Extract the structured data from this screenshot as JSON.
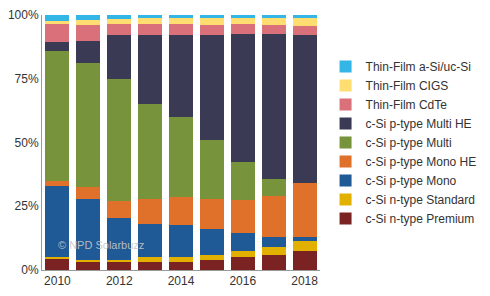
{
  "chart_data": {
    "type": "bar",
    "stacked": true,
    "grid": false,
    "legend": "right",
    "x": [
      2010,
      2011,
      2012,
      2013,
      2014,
      2015,
      2016,
      2017,
      2018
    ],
    "xlim": [
      2009.5,
      2018.5
    ],
    "xticks": [
      2010,
      2012,
      2014,
      2016,
      2018
    ],
    "ylim": [
      0,
      100
    ],
    "yticks": [
      {
        "value": 0,
        "label": "0%"
      },
      {
        "value": 25,
        "label": "25%"
      },
      {
        "value": 50,
        "label": "50%"
      },
      {
        "value": 75,
        "label": "75%"
      },
      {
        "value": 100,
        "label": "100%"
      }
    ],
    "annotations": [
      {
        "text": "© NPD Solarbuzz"
      }
    ],
    "series": [
      {
        "name": "c-Si n-type Premium",
        "color": "#7b2323",
        "values": [
          4.5,
          3,
          3,
          3,
          3,
          4,
          5,
          6,
          7.5
        ]
      },
      {
        "name": "c-Si n-type Standard",
        "color": "#e2b100",
        "values": [
          0.5,
          1,
          1,
          2,
          2,
          2,
          2.5,
          3,
          4
        ]
      },
      {
        "name": "c-Si p-type Mono",
        "color": "#1f5a96",
        "values": [
          28,
          24,
          16.5,
          13,
          12.5,
          10,
          7,
          4,
          1.5
        ]
      },
      {
        "name": "c-Si p-type Mono HE",
        "color": "#e0712a",
        "values": [
          2,
          4.5,
          6.5,
          10,
          11,
          12,
          13,
          16,
          21
        ]
      },
      {
        "name": "c-Si p-type Multi",
        "color": "#77933c",
        "values": [
          51,
          48.5,
          48,
          37,
          31.5,
          23,
          15,
          6.5,
          0
        ]
      },
      {
        "name": "c-Si p-type Multi HE",
        "color": "#3b3a54",
        "values": [
          3.5,
          9,
          17,
          27,
          32,
          41,
          50,
          57,
          58
        ]
      },
      {
        "name": "Thin-Film CdTe",
        "color": "#d9707a",
        "values": [
          7,
          6,
          4.5,
          4.5,
          4.5,
          4,
          4,
          3.5,
          3.5
        ]
      },
      {
        "name": "Thin-Film CIGS",
        "color": "#ffdd71",
        "values": [
          1.3,
          2,
          2,
          2.5,
          2.5,
          3,
          2.5,
          3,
          3.5
        ]
      },
      {
        "name": "Thin-Film a-Si/uc-Si",
        "color": "#33b5e5",
        "values": [
          2.2,
          2,
          1.5,
          1,
          1,
          1,
          1,
          1,
          1
        ]
      }
    ]
  }
}
